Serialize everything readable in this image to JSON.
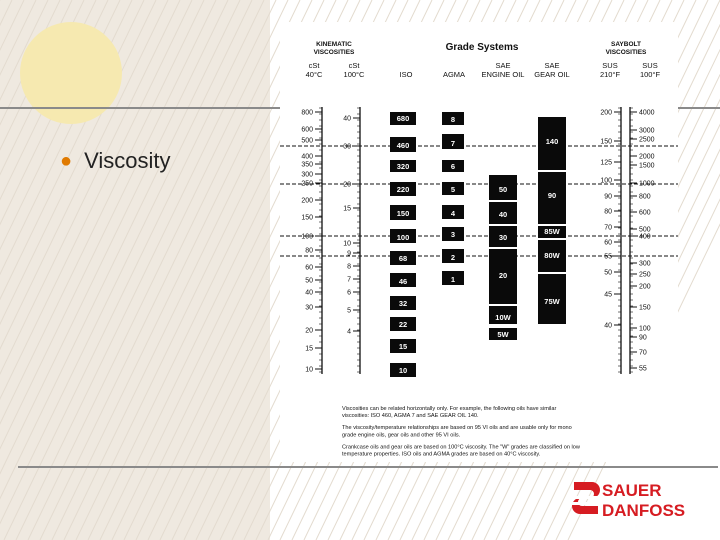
{
  "slide": {
    "bullet": "Viscosity"
  },
  "logo": {
    "line1": "SAUER",
    "line2": "DANFOSS",
    "color": "#d61c22"
  },
  "chart_data": {
    "type": "table",
    "header": {
      "kin_title": [
        "KINEMATIC",
        "VISCOSITIES"
      ],
      "kin_col1": [
        "cSt",
        "40°C"
      ],
      "kin_col2": [
        "cSt",
        "100°C"
      ],
      "grade_title": "Grade Systems",
      "iso": "ISO",
      "agma": "AGMA",
      "sae_engine": [
        "SAE",
        "ENGINE OIL"
      ],
      "sae_gear": [
        "SAE",
        "GEAR OIL"
      ],
      "say_title": [
        "SAYBOLT",
        "VISCOSITIES"
      ],
      "sus1": [
        "SUS",
        "210°F"
      ],
      "sus2": [
        "SUS",
        "100°F"
      ]
    },
    "scale_cst40": [
      800,
      600,
      500,
      400,
      350,
      300,
      250,
      200,
      150,
      100,
      80,
      60,
      50,
      40,
      30,
      20,
      15,
      10
    ],
    "scale_cst100": [
      40,
      30,
      20,
      15,
      10,
      9,
      8,
      7,
      6,
      5,
      4
    ],
    "scale_sus210": [
      200,
      150,
      125,
      100,
      90,
      80,
      70,
      60,
      55,
      50,
      45,
      40
    ],
    "scale_sus100": [
      4000,
      3000,
      2500,
      2000,
      1500,
      1000,
      800,
      600,
      500,
      400,
      300,
      250,
      200,
      150,
      100,
      90,
      70,
      55
    ],
    "iso_grades": [
      "680",
      "460",
      "320",
      "220",
      "150",
      "100",
      "68",
      "46",
      "32",
      "22",
      "15",
      "10"
    ],
    "agma_grades": [
      "8",
      "7",
      "6",
      "5",
      "4",
      "3",
      "2",
      "1"
    ],
    "sae_engine_grades": [
      "50",
      "40",
      "30",
      "20",
      "10W",
      "5W"
    ],
    "sae_gear_grades": [
      "140",
      "90",
      "85W",
      "80W",
      "75W"
    ],
    "notes": [
      "Viscosities can be related horizontally only. For example, the following oils have similar viscosities: ISO 460, AGMA 7 and SAE GEAR OIL 140.",
      "The viscosity/temperature relationships are based on 95 VI oils and are usable only for mono grade engine oils, gear oils and other 95 VI oils.",
      "Crankcase oils and gear oils are based on 100°C viscosity. The \"W\" grades are classified on low temperature properties. ISO oils and AGMA grades are based on 40°C viscosity."
    ]
  }
}
